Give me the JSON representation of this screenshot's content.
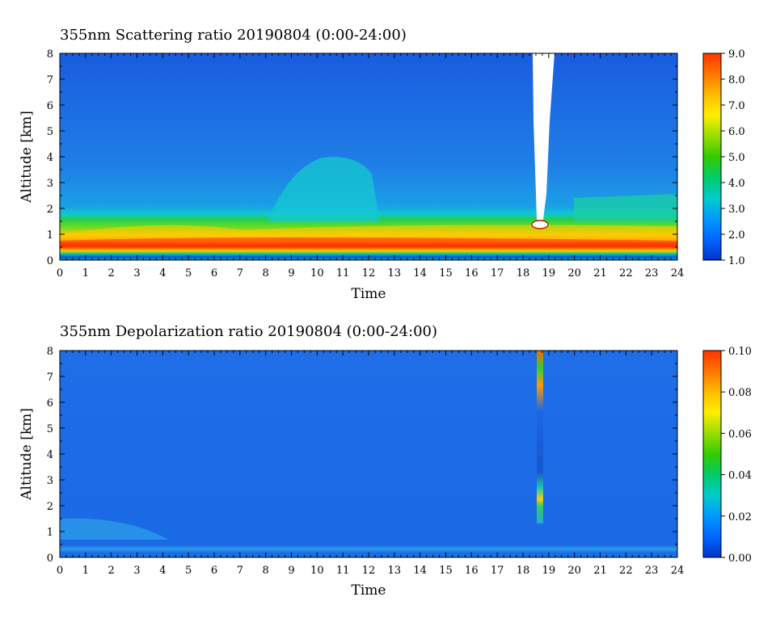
{
  "chart_data": [
    {
      "type": "heatmap",
      "title": "355nm Scattering ratio  20190804 (0:00-24:00)",
      "xlabel": "Time",
      "ylabel": "Altitude [km]",
      "xlim": [
        0,
        24
      ],
      "ylim": [
        0,
        8
      ],
      "x_ticks": [
        "0",
        "1",
        "2",
        "3",
        "4",
        "5",
        "6",
        "7",
        "8",
        "9",
        "10",
        "11",
        "12",
        "13",
        "14",
        "15",
        "16",
        "17",
        "18",
        "19",
        "20",
        "21",
        "22",
        "23",
        "24"
      ],
      "y_ticks": [
        "0",
        "1",
        "2",
        "3",
        "4",
        "5",
        "6",
        "7",
        "8"
      ],
      "colorbar": {
        "range": [
          1.0,
          9.0
        ],
        "ticks": [
          "1.0",
          "2.0",
          "3.0",
          "4.0",
          "5.0",
          "6.0",
          "7.0",
          "8.0",
          "9.0"
        ],
        "colors": [
          "#0033cc",
          "#0066ff",
          "#0099ff",
          "#00cccc",
          "#00cc66",
          "#33cc00",
          "#99dd00",
          "#ffee00",
          "#ffbb00",
          "#ff7700",
          "#ff3300"
        ]
      },
      "features": [
        {
          "description": "boundary layer high scattering",
          "x": [
            0,
            24
          ],
          "y": [
            0.3,
            1.2
          ],
          "value": 7.5
        },
        {
          "description": "aerosol layer",
          "x": [
            0,
            24
          ],
          "y": [
            1.0,
            1.8
          ],
          "value": 4.5
        },
        {
          "description": "no-data gap",
          "x": [
            18.5,
            18.9
          ],
          "y": [
            1.3,
            8.0
          ]
        }
      ]
    },
    {
      "type": "heatmap",
      "title": "355nm Depolarization ratio  20190804 (0:00-24:00)",
      "xlabel": "Time",
      "ylabel": "Altitude [km]",
      "xlim": [
        0,
        24
      ],
      "ylim": [
        0,
        8
      ],
      "x_ticks": [
        "0",
        "1",
        "2",
        "3",
        "4",
        "5",
        "6",
        "7",
        "8",
        "9",
        "10",
        "11",
        "12",
        "13",
        "14",
        "15",
        "16",
        "17",
        "18",
        "19",
        "20",
        "21",
        "22",
        "23",
        "24"
      ],
      "y_ticks": [
        "0",
        "1",
        "2",
        "3",
        "4",
        "5",
        "6",
        "7",
        "8"
      ],
      "colorbar": {
        "range": [
          0.0,
          0.1
        ],
        "ticks": [
          "0.00",
          "0.02",
          "0.04",
          "0.06",
          "0.08",
          "0.10"
        ],
        "colors": [
          "#0033cc",
          "#0066ff",
          "#0099ff",
          "#00cccc",
          "#00cc66",
          "#33cc00",
          "#99dd00",
          "#ffee00",
          "#ffbb00",
          "#ff7700",
          "#ff3300"
        ]
      },
      "features": [
        {
          "description": "background depolarization",
          "x": [
            0,
            24
          ],
          "y": [
            0,
            8
          ],
          "value": 0.01
        },
        {
          "description": "elevated near-surface layer",
          "x": [
            0,
            4.2
          ],
          "y": [
            0.7,
            1.4
          ],
          "value": 0.02
        },
        {
          "description": "cloud column",
          "x": [
            18.6,
            18.8
          ],
          "y": [
            1.5,
            8.0
          ],
          "value": 0.06
        }
      ]
    }
  ]
}
